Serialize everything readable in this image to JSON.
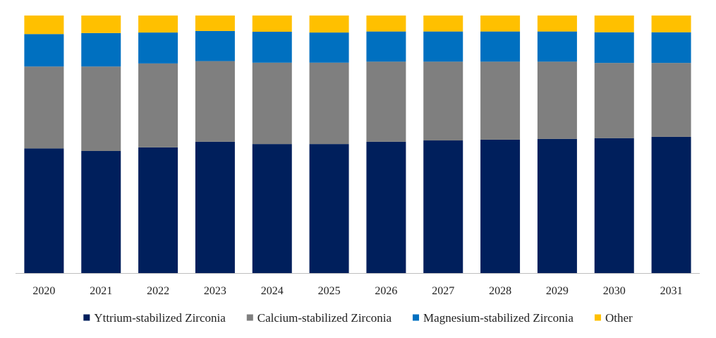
{
  "chart_data": {
    "type": "bar",
    "stacked": true,
    "percent": true,
    "categories": [
      "2020",
      "2021",
      "2022",
      "2023",
      "2024",
      "2025",
      "2026",
      "2027",
      "2028",
      "2029",
      "2030",
      "2031"
    ],
    "series": [
      {
        "name": "Yttrium-stabilized Zirconia",
        "color": "#001F5C",
        "values": [
          48.4,
          47.4,
          48.8,
          51.0,
          50.1,
          50.1,
          51.0,
          51.5,
          51.8,
          52.1,
          52.4,
          52.9
        ]
      },
      {
        "name": "Calcium-stabilized Zirconia",
        "color": "#7F7F7F",
        "values": [
          31.8,
          32.8,
          32.6,
          31.3,
          31.6,
          31.6,
          31.1,
          30.6,
          30.3,
          30.0,
          29.2,
          28.7
        ]
      },
      {
        "name": "Magnesium-stabilized Zirconia",
        "color": "#0070C0",
        "values": [
          12.6,
          13.0,
          12.0,
          11.7,
          12.0,
          11.7,
          11.7,
          11.7,
          11.7,
          11.7,
          11.9,
          11.9
        ]
      },
      {
        "name": "Other",
        "color": "#FFC000",
        "values": [
          7.2,
          6.8,
          6.6,
          6.0,
          6.3,
          6.6,
          6.2,
          6.2,
          6.2,
          6.2,
          6.5,
          6.5
        ]
      }
    ],
    "ylim": [
      0,
      100
    ],
    "grid": false,
    "legend_position": "bottom"
  }
}
